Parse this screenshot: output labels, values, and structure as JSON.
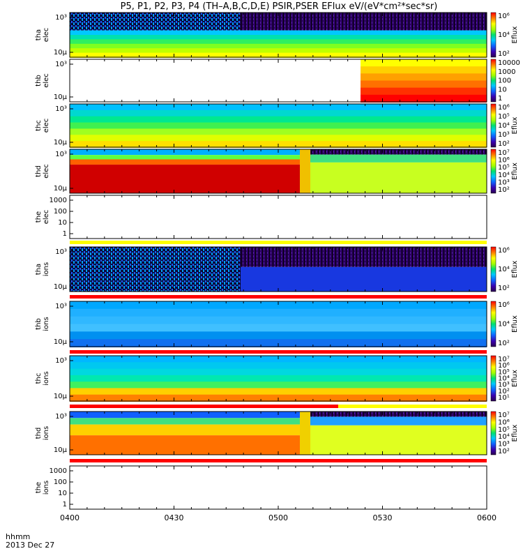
{
  "title": "P5, P1, P2, P3, P4 (TH–A,B,C,D,E) PSIR,PSER EFlux eV/(eV*cm²*sec*sr)",
  "footer": {
    "axis_units": "hhmm",
    "date": "2013 Dec 27"
  },
  "colors": {
    "accent_red": "#ff0000",
    "accent_yellow": "#ffff00"
  },
  "chart_data": {
    "type": "heatmap",
    "x_tick_labels": [
      "0400",
      "0430",
      "0500",
      "0530",
      "0600"
    ],
    "x_range": [
      "0400",
      "0600"
    ],
    "colormap": "rainbow",
    "y_scale": "log",
    "panels": [
      {
        "probe": "tha",
        "species": "elec",
        "ylabel": [
          "tha",
          "elec"
        ],
        "yticks": [
          "10³",
          "10µ"
        ],
        "zlabel": "Eflux",
        "ztick_labels": [
          "10⁶",
          "10⁴",
          "10²"
        ],
        "has_data": true
      },
      {
        "probe": "thb",
        "species": "elec",
        "ylabel": [
          "thb",
          "elec"
        ],
        "yticks": [
          "10³",
          "10µ"
        ],
        "zlabel": "",
        "ztick_labels": [
          "10000",
          "1000",
          "100",
          "10",
          "1"
        ],
        "has_data": true,
        "data_start": "0523"
      },
      {
        "probe": "thc",
        "species": "elec",
        "ylabel": [
          "thc",
          "elec"
        ],
        "yticks": [
          "10³",
          "10µ"
        ],
        "zlabel": "Eflux",
        "ztick_labels": [
          "10⁶",
          "10⁵",
          "10⁴",
          "10³",
          "10²"
        ],
        "has_data": true
      },
      {
        "probe": "thd",
        "species": "elec",
        "ylabel": [
          "thd",
          "elec"
        ],
        "yticks": [
          "10³",
          "10µ"
        ],
        "zlabel": "Eflux",
        "ztick_labels": [
          "10⁷",
          "10⁶",
          "10⁵",
          "10⁴",
          "10³",
          "10²"
        ],
        "has_data": true
      },
      {
        "probe": "the",
        "species": "elec",
        "ylabel": [
          "the",
          "elec"
        ],
        "yticks": [
          "1000",
          "100",
          "10",
          "1"
        ],
        "has_data": false
      },
      {
        "probe": "tha",
        "species": "ions",
        "ylabel": [
          "tha",
          "ions"
        ],
        "yticks": [
          "10³",
          "10µ"
        ],
        "zlabel": "Eflux",
        "ztick_labels": [
          "10⁶",
          "10⁴",
          "10²"
        ],
        "has_data": true
      },
      {
        "probe": "thb",
        "species": "ions",
        "ylabel": [
          "thb",
          "ions"
        ],
        "yticks": [
          "10³",
          "10µ"
        ],
        "zlabel": "Eflux",
        "ztick_labels": [
          "10⁶",
          "10⁴",
          "10²"
        ],
        "has_data": true
      },
      {
        "probe": "thc",
        "species": "ions",
        "ylabel": [
          "thc",
          "ions"
        ],
        "yticks": [
          "10³",
          "10µ"
        ],
        "zlabel": "Eflux",
        "ztick_labels": [
          "10⁷",
          "10⁶",
          "10⁵",
          "10⁴",
          "10³",
          "10²",
          "10¹"
        ],
        "has_data": true
      },
      {
        "probe": "thd",
        "species": "ions",
        "ylabel": [
          "thd",
          "ions"
        ],
        "yticks": [
          "10³",
          "10µ"
        ],
        "zlabel": "Eflux",
        "ztick_labels": [
          "10⁷",
          "10⁶",
          "10⁵",
          "10⁴",
          "10³",
          "10²"
        ],
        "has_data": true
      },
      {
        "probe": "the",
        "species": "ions",
        "ylabel": [
          "the",
          "ions"
        ],
        "yticks": [
          "1000",
          "100",
          "10",
          "1"
        ],
        "has_data": false
      }
    ]
  }
}
